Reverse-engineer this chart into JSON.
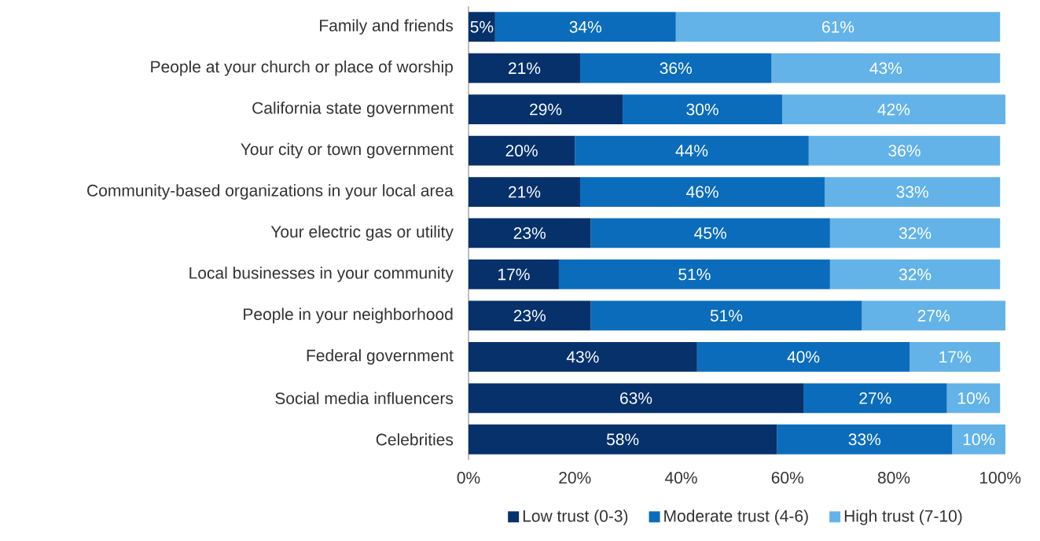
{
  "chart_data": {
    "type": "bar",
    "orientation": "horizontal",
    "stacked": true,
    "categories": [
      "Family and friends",
      "People at your church or place of worship",
      "California state government",
      "Your city or town government",
      "Community-based organizations in your local area",
      "Your electric gas or utility",
      "Local businesses in your community",
      "People in your neighborhood",
      "Federal government",
      "Social media influencers",
      "Celebrities"
    ],
    "series": [
      {
        "name": "Low trust (0-3)",
        "color": "#06316b",
        "values": [
          5,
          21,
          29,
          20,
          21,
          23,
          17,
          23,
          43,
          63,
          58
        ],
        "value_labels": [
          "5%",
          "21%",
          "29%",
          "20%",
          "21%",
          "23%",
          "17%",
          "23%",
          "43%",
          "63%",
          "58%"
        ]
      },
      {
        "name": "Moderate trust (4-6)",
        "color": "#0b6cbb",
        "values": [
          34,
          36,
          30,
          44,
          46,
          45,
          51,
          51,
          40,
          27,
          33
        ],
        "value_labels": [
          "34%",
          "36%",
          "30%",
          "44%",
          "46%",
          "45%",
          "51%",
          "51%",
          "40%",
          "27%",
          "33%"
        ]
      },
      {
        "name": "High trust (7-10)",
        "color": "#63b3e8",
        "values": [
          61,
          43,
          42,
          36,
          33,
          32,
          32,
          27,
          17,
          10,
          10
        ],
        "value_labels": [
          "61%",
          "43%",
          "42%",
          "36%",
          "33%",
          "32%",
          "32%",
          "27%",
          "17%",
          "10%",
          "10%"
        ]
      }
    ],
    "xlim": [
      0,
      101
    ],
    "xticks": [
      {
        "value": 0,
        "label": "0%"
      },
      {
        "value": 20,
        "label": "20%"
      },
      {
        "value": 40,
        "label": "40%"
      },
      {
        "value": 60,
        "label": "60%"
      },
      {
        "value": 80,
        "label": "80%"
      },
      {
        "value": 100,
        "label": "100%"
      }
    ],
    "grid": false,
    "legend": "bottom"
  }
}
